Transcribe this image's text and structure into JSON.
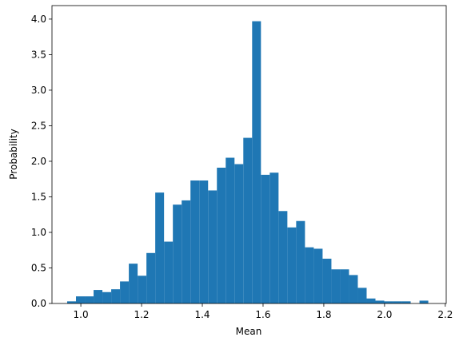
{
  "chart_data": {
    "type": "histogram",
    "xlabel": "Mean",
    "ylabel": "Probability",
    "color": "#1f77b4",
    "bins": [
      0.955,
      0.984,
      1.013,
      1.042,
      1.071,
      1.1,
      1.129,
      1.158,
      1.187,
      1.216,
      1.245,
      1.274,
      1.303,
      1.332,
      1.361,
      1.39,
      1.419,
      1.448,
      1.477,
      1.506,
      1.535,
      1.564,
      1.593,
      1.622,
      1.651,
      1.68,
      1.709,
      1.738,
      1.767,
      1.796,
      1.825,
      1.854,
      1.883,
      1.912,
      1.941,
      1.97,
      1.999,
      2.028,
      2.057,
      2.086,
      2.115,
      2.144
    ],
    "values": [
      0.03,
      0.1,
      0.1,
      0.19,
      0.16,
      0.2,
      0.31,
      0.56,
      0.39,
      0.71,
      1.56,
      0.87,
      1.39,
      1.45,
      1.73,
      1.73,
      1.59,
      1.91,
      2.05,
      1.96,
      2.33,
      3.97,
      1.81,
      1.84,
      1.3,
      1.07,
      1.16,
      0.79,
      0.77,
      0.63,
      0.48,
      0.48,
      0.4,
      0.22,
      0.07,
      0.04,
      0.03,
      0.03,
      0.03,
      0,
      0.04
    ],
    "xlim": [
      0.905,
      2.203
    ],
    "ylim": [
      0,
      4.19
    ],
    "xticks": [
      {
        "value": 1,
        "label": "1.0"
      },
      {
        "value": 1.2,
        "label": "1.2"
      },
      {
        "value": 1.4,
        "label": "1.4"
      },
      {
        "value": 1.6,
        "label": "1.6"
      },
      {
        "value": 1.8,
        "label": "1.8"
      },
      {
        "value": 2,
        "label": "2.0"
      },
      {
        "value": 2.2,
        "label": "2.2"
      }
    ],
    "yticks": [
      {
        "value": 0,
        "label": "0.0"
      },
      {
        "value": 0.5,
        "label": "0.5"
      },
      {
        "value": 1,
        "label": "1.0"
      },
      {
        "value": 1.5,
        "label": "1.5"
      },
      {
        "value": 2,
        "label": "2.0"
      },
      {
        "value": 2.5,
        "label": "2.5"
      },
      {
        "value": 3,
        "label": "3.0"
      },
      {
        "value": 3.5,
        "label": "3.5"
      },
      {
        "value": 4,
        "label": "4.0"
      }
    ]
  }
}
